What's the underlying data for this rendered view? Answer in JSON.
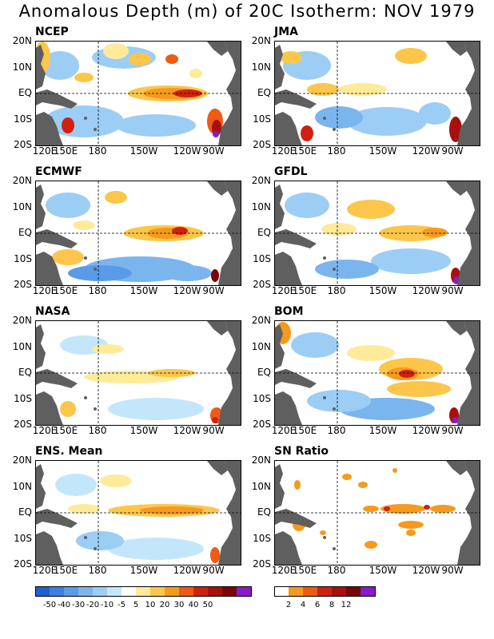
{
  "title": "Anomalous Depth (m) of 20C Isotherm: NOV 1979",
  "panels": [
    {
      "name": "NCEP"
    },
    {
      "name": "JMA"
    },
    {
      "name": "ECMWF"
    },
    {
      "name": "GFDL"
    },
    {
      "name": "NASA"
    },
    {
      "name": "BOM"
    },
    {
      "name": "ENS. Mean"
    },
    {
      "name": "SN Ratio"
    }
  ],
  "lat_labels": [
    "20N",
    "10N",
    "EQ",
    "10S",
    "20S"
  ],
  "lon_labels": [
    "120E",
    "150E",
    "180",
    "150W",
    "120W",
    "90W"
  ],
  "anomaly_colorbar": {
    "labels": [
      "-50",
      "-40",
      "-30",
      "-20",
      "-10",
      "-5",
      "5",
      "10",
      "20",
      "30",
      "40",
      "50"
    ],
    "colors": [
      "#1e5fd4",
      "#3a7fe4",
      "#5a9be8",
      "#7bb5ee",
      "#9ccdf5",
      "#c4e6fa",
      "#ffffff",
      "#fdeb9a",
      "#fcc64a",
      "#f59a1e",
      "#ed5b14",
      "#d22010",
      "#a8100c",
      "#7a0606",
      "#8a1ad0"
    ]
  },
  "ratio_colorbar": {
    "labels": [
      "2",
      "4",
      "6",
      "8",
      "12"
    ],
    "colors": [
      "#ffffff",
      "#f59a1e",
      "#ed5b14",
      "#d22010",
      "#a8100c",
      "#7a0606",
      "#8a1ad0"
    ]
  },
  "colors": {
    "land": "#5f5f5f"
  }
}
